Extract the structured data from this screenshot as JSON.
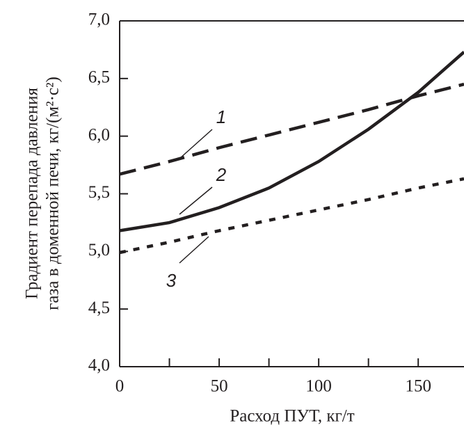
{
  "chart_data": {
    "type": "line",
    "x_label": "Расход ПУТ, кг/т",
    "y_label": [
      "Градиент перепада давления",
      "газа в доменной печи, кг/(м²·с²)"
    ],
    "x": [
      0,
      25,
      50,
      75,
      100,
      125,
      150,
      173
    ],
    "series": [
      {
        "name": "1",
        "color": "#231f20",
        "style": "dashed",
        "values": [
          5.67,
          5.78,
          5.9,
          6.01,
          6.12,
          6.23,
          6.35,
          6.45
        ]
      },
      {
        "name": "2",
        "color": "#231f20",
        "style": "solid",
        "values": [
          5.18,
          5.25,
          5.38,
          5.55,
          5.78,
          6.06,
          6.38,
          6.73
        ]
      },
      {
        "name": "3",
        "color": "#231f20",
        "style": "dotted",
        "values": [
          4.99,
          5.08,
          5.18,
          5.27,
          5.36,
          5.45,
          5.55,
          5.63
        ]
      }
    ],
    "xlim": [
      0,
      173
    ],
    "ylim": [
      4.0,
      7.0
    ],
    "xticks": [
      0,
      50,
      100,
      150
    ],
    "xminorticks": [
      25,
      75,
      125
    ],
    "yticks": [
      {
        "value": 4.0,
        "label": "4,0"
      },
      {
        "value": 4.5,
        "label": "4,5"
      },
      {
        "value": 5.0,
        "label": "5,0"
      },
      {
        "value": 5.5,
        "label": "5,5"
      },
      {
        "value": 6.0,
        "label": "6,0"
      },
      {
        "value": 6.5,
        "label": "6,5"
      },
      {
        "value": 7.0,
        "label": "7,0"
      }
    ]
  }
}
